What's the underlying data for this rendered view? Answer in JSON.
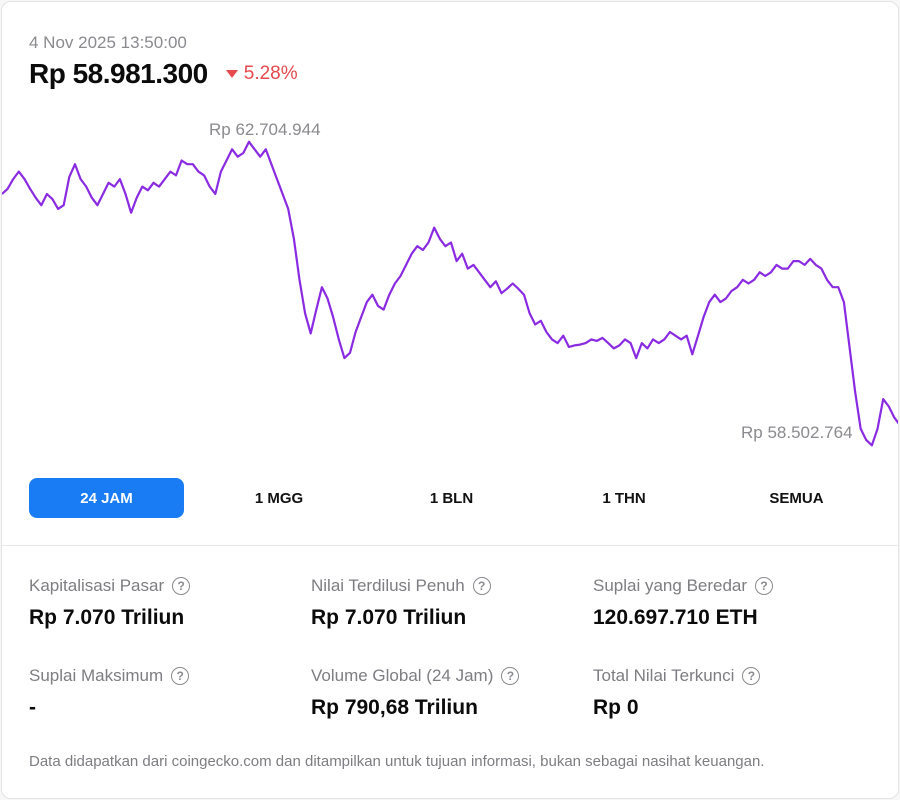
{
  "header": {
    "timestamp": "4 Nov 2025 13:50:00",
    "price": "Rp 58.981.300",
    "change": "5.28%",
    "change_direction": "down",
    "change_color": "#e5484d"
  },
  "chart_data": {
    "type": "line",
    "line_color": "#8a2be2",
    "high_label": "Rp 62.704.944",
    "low_label": "Rp 58.502.764",
    "high": 62704944,
    "low": 58502764,
    "ylim": [
      58390000,
      62950000
    ],
    "values": [
      61850000,
      61920000,
      62050000,
      62150000,
      62050000,
      61920000,
      61800000,
      61700000,
      61850000,
      61780000,
      61650000,
      61700000,
      62080000,
      62250000,
      62050000,
      61950000,
      61800000,
      61700000,
      61850000,
      62000000,
      61950000,
      62050000,
      61850000,
      61600000,
      61800000,
      61950000,
      61900000,
      62000000,
      61950000,
      62050000,
      62150000,
      62100000,
      62300000,
      62250000,
      62250000,
      62150000,
      62100000,
      61950000,
      61850000,
      62150000,
      62300000,
      62450000,
      62350000,
      62400000,
      62550000,
      62450000,
      62350000,
      62450000,
      62250000,
      62050000,
      61850000,
      61650000,
      61250000,
      60700000,
      60250000,
      59980000,
      60300000,
      60600000,
      60450000,
      60200000,
      59900000,
      59650000,
      59720000,
      60000000,
      60200000,
      60400000,
      60500000,
      60350000,
      60300000,
      60500000,
      60650000,
      60750000,
      60900000,
      61050000,
      61150000,
      61100000,
      61200000,
      61400000,
      61250000,
      61150000,
      61200000,
      60950000,
      61050000,
      60850000,
      60900000,
      60800000,
      60700000,
      60600000,
      60680000,
      60520000,
      60580000,
      60650000,
      60580000,
      60500000,
      60250000,
      60100000,
      60150000,
      60000000,
      59900000,
      59850000,
      59950000,
      59800000,
      59820000,
      59830000,
      59850000,
      59900000,
      59880000,
      59920000,
      59850000,
      59780000,
      59820000,
      59900000,
      59850000,
      59650000,
      59850000,
      59780000,
      59900000,
      59850000,
      59900000,
      60000000,
      59950000,
      59900000,
      59950000,
      59700000,
      59950000,
      60200000,
      60400000,
      60500000,
      60400000,
      60450000,
      60550000,
      60600000,
      60700000,
      60650000,
      60700000,
      60800000,
      60750000,
      60800000,
      60900000,
      60850000,
      60850000,
      60950000,
      60950000,
      60900000,
      60980000,
      60900000,
      60850000,
      60700000,
      60600000,
      60600000,
      60400000,
      59800000,
      59200000,
      58700000,
      58550000,
      58480000,
      58700000,
      59100000,
      59000000,
      58850000,
      58750000
    ]
  },
  "ranges": [
    {
      "label": "24 JAM",
      "active": true
    },
    {
      "label": "1 MGG",
      "active": false
    },
    {
      "label": "1 BLN",
      "active": false
    },
    {
      "label": "1 THN",
      "active": false
    },
    {
      "label": "SEMUA",
      "active": false
    }
  ],
  "stats": [
    {
      "label": "Kapitalisasi Pasar",
      "value": "Rp 7.070 Triliun"
    },
    {
      "label": "Nilai Terdilusi Penuh",
      "value": "Rp 7.070 Triliun"
    },
    {
      "label": "Suplai yang Beredar",
      "value": "120.697.710 ETH"
    },
    {
      "label": "Suplai Maksimum",
      "value": "-"
    },
    {
      "label": "Volume Global (24 Jam)",
      "value": "Rp 790,68 Triliun"
    },
    {
      "label": "Total Nilai Terkunci",
      "value": "Rp 0"
    }
  ],
  "help_glyph": "?",
  "disclaimer": "Data didapatkan dari coingecko.com dan ditampilkan untuk tujuan informasi, bukan sebagai nasihat keuangan.",
  "accent_color": "#1a7cf5"
}
